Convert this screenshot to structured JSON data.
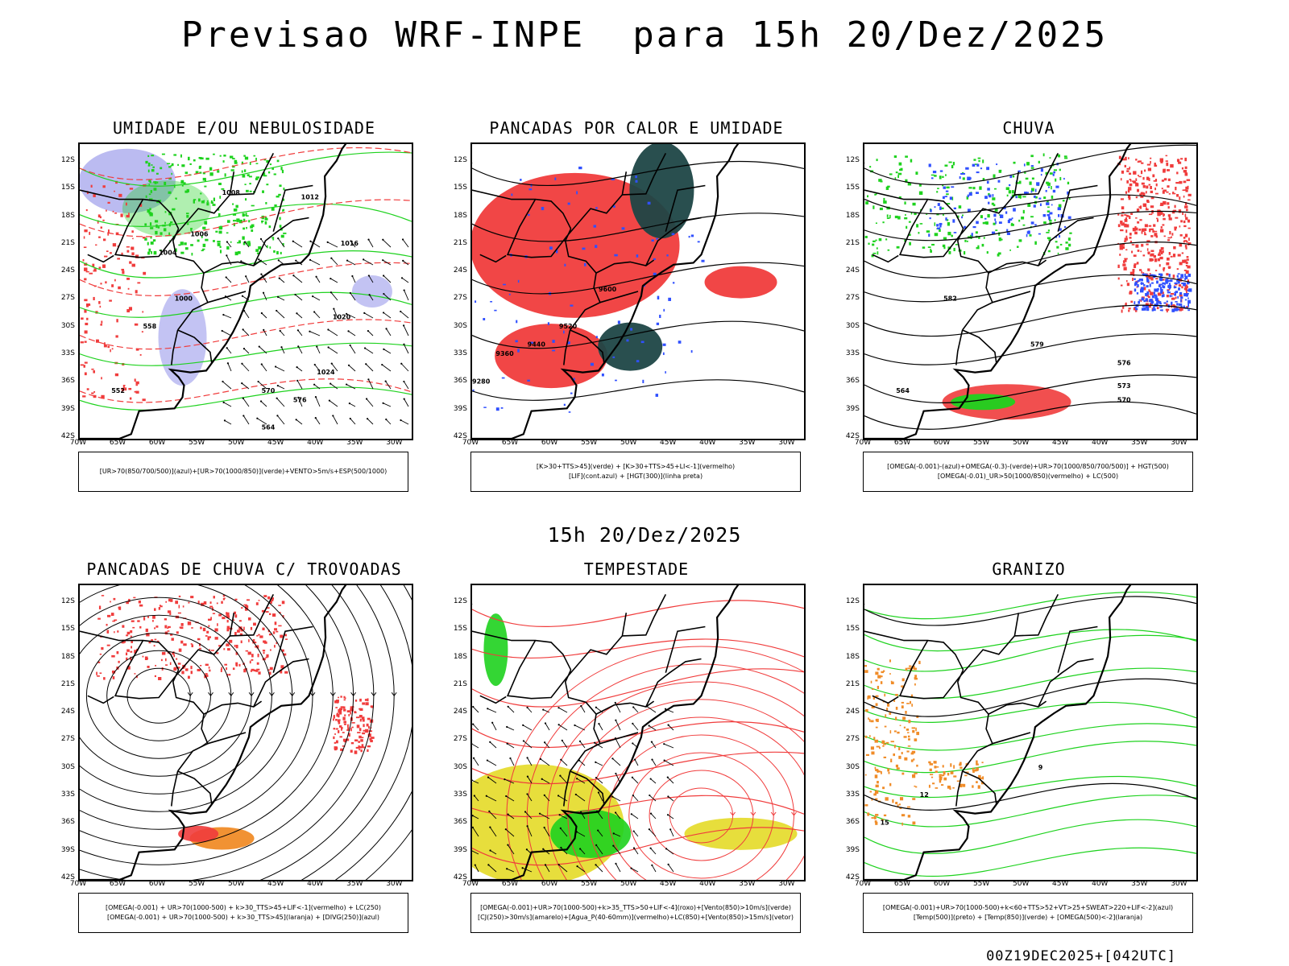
{
  "title": "Previsao WRF-INPE  para 15h 20/Dez/2025",
  "subtitle": "15h 20/Dez/2025",
  "footer": "00Z19DEC2025+[042UTC]",
  "axes": {
    "lat_ticks": [
      "12S",
      "15S",
      "18S",
      "21S",
      "24S",
      "27S",
      "30S",
      "33S",
      "36S",
      "39S",
      "42S"
    ],
    "lon_ticks": [
      "70W",
      "65W",
      "60W",
      "55W",
      "50W",
      "45W",
      "40W",
      "35W",
      "30W"
    ]
  },
  "colors": {
    "red": "#f03c3c",
    "green": "#1ed21e",
    "blue": "#3050ff",
    "lavender": "#b4b4f0",
    "darkteal": "#1e4646",
    "yellow": "#e6dc32",
    "orange": "#f08c28",
    "black": "#000000"
  },
  "panels": [
    {
      "title": "UMIDADE E/OU NEBULOSIDADE",
      "legend": [
        "[UR>70(850/700/500)](azul)+[UR>70(1000/850)](verde)+VENTO>5m/s+ESP(500/1000)"
      ],
      "map_labels": [
        "1012",
        "1008",
        "1006",
        "1004",
        "1016",
        "1020",
        "1024",
        "1000",
        "576",
        "570",
        "564",
        "558",
        "552"
      ]
    },
    {
      "title": "PANCADAS POR CALOR E UMIDADE",
      "legend": [
        "[K>30+TTS>45](verde) + [K>30+TTS>45+LI<-1](vermelho)",
        "[LIF](cont.azul) + [HGT(300)](linha preta)"
      ],
      "map_labels": [
        "9600",
        "9520",
        "9440",
        "9360",
        "9280"
      ]
    },
    {
      "title": "CHUVA",
      "legend": [
        "[OMEGA(-0.001)-(azul)+OMEGA(-0.3)-(verde)+UR>70(1000/850/700/500)] + HGT(500)",
        "[OMEGA(-0.01)_UR>50(1000/850)(vermelho) + LC(500)"
      ],
      "map_labels": [
        "582",
        "579",
        "576",
        "573",
        "570",
        "564"
      ]
    },
    {
      "title": "PANCADAS DE CHUVA C/ TROVOADAS",
      "legend": [
        "[OMEGA(-0.001) + UR>70(1000-500) + k>30_TTS>45+LIF<-1](vermelho) + LC(250)",
        "[OMEGA(-0.001) + UR>70(1000-500) + k>30_TTS>45](laranja) + [DIVG(250)](azul)"
      ],
      "map_labels": []
    },
    {
      "title": "TEMPESTADE",
      "legend": [
        "[OMEGA(-0.001)+UR>70(1000-500)+k>35_TTS>50+LIF<-4](roxo)+[Vento(850)>10m/s](verde)",
        "[CJ(250)>30m/s](amarelo)+[Agua_P(40-60mm)](vermelho)+LC(850)+[Vento(850)>15m/s](vetor)"
      ],
      "map_labels": []
    },
    {
      "title": "GRANIZO",
      "legend": [
        "[OMEGA(-0.001)+UR>70(1000-500)+k<60+TTS>52+VT>25+SWEAT>220+LIF<-2](azul)",
        "[Temp(500)](preto) + [Temp(850)](verde) + [OMEGA(500)<-2](laranja)"
      ],
      "map_labels": [
        "15",
        "12",
        "9"
      ]
    }
  ]
}
